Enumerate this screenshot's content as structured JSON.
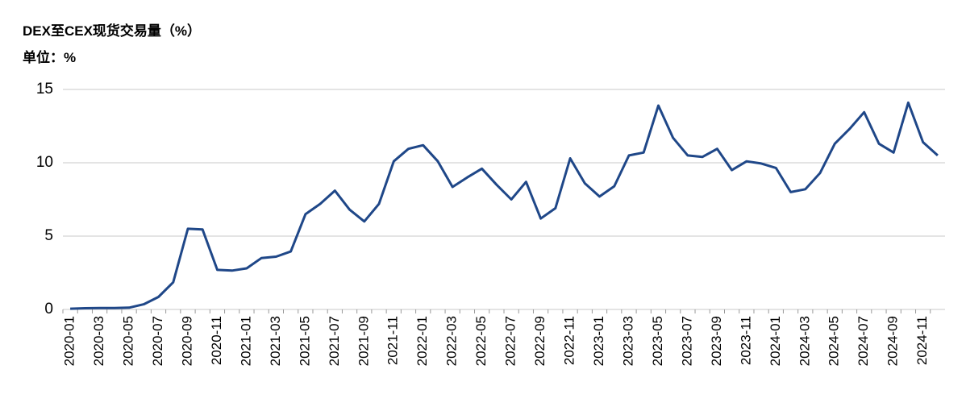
{
  "chart_data": {
    "type": "line",
    "title": "DEX至CEX现货交易量（%）",
    "subtitle": "单位：%",
    "categories": [
      "2020-01",
      null,
      "2020-03",
      null,
      "2020-05",
      null,
      "2020-07",
      null,
      "2020-09",
      null,
      "2020-11",
      null,
      "2021-01",
      null,
      "2021-03",
      null,
      "2021-05",
      null,
      "2021-07",
      null,
      "2021-09",
      null,
      "2021-11",
      null,
      "2022-01",
      null,
      "2022-03",
      null,
      "2022-05",
      null,
      "2022-07",
      null,
      "2022-09",
      null,
      "2022-11",
      null,
      "2023-01",
      null,
      "2023-03",
      null,
      "2023-05",
      null,
      "2023-07",
      null,
      "2023-09",
      null,
      "2023-11",
      null,
      "2024-01",
      null,
      "2024-03",
      null,
      "2024-05",
      null,
      "2024-07",
      null,
      "2024-09",
      null,
      "2024-11",
      null
    ],
    "values": [
      0.05,
      0.08,
      0.1,
      0.1,
      0.12,
      0.35,
      0.85,
      1.85,
      5.5,
      5.45,
      2.7,
      2.65,
      2.8,
      3.5,
      3.6,
      3.95,
      6.5,
      7.2,
      8.1,
      6.8,
      6.0,
      7.2,
      10.1,
      10.95,
      11.2,
      10.1,
      8.35,
      9.0,
      9.6,
      8.5,
      7.5,
      8.7,
      6.2,
      6.9,
      10.3,
      8.6,
      7.7,
      8.4,
      10.5,
      10.7,
      13.9,
      11.7,
      10.5,
      10.4,
      10.95,
      9.5,
      10.1,
      9.95,
      9.65,
      8.0,
      8.2,
      9.3,
      11.3,
      12.3,
      13.45,
      11.3,
      10.7,
      14.1,
      11.4,
      10.5
    ],
    "color": "#1f4788",
    "ylim": [
      0,
      15
    ],
    "yticks": [
      0,
      5,
      10,
      15
    ],
    "grid": true
  }
}
